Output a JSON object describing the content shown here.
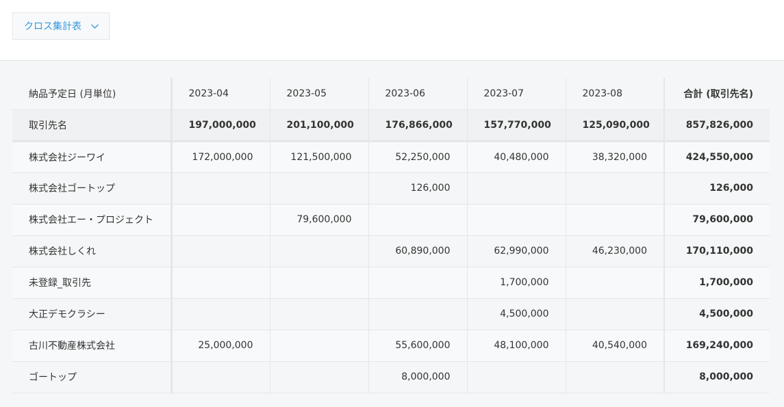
{
  "view_selector": {
    "label": "クロス集計表",
    "icon": "chevron-down-icon",
    "accent_color": "#3498db"
  },
  "table": {
    "header": {
      "row_dimension": "納品予定日 (月単位)",
      "columns": [
        "2023-04",
        "2023-05",
        "2023-06",
        "2023-07",
        "2023-08"
      ],
      "total": "合計 (取引先名)"
    },
    "summary_row": {
      "label": "取引先名",
      "values": [
        "197,000,000",
        "201,100,000",
        "176,866,000",
        "157,770,000",
        "125,090,000"
      ],
      "total": "857,826,000"
    },
    "rows": [
      {
        "label": "株式会社ジーワイ",
        "values": [
          "172,000,000",
          "121,500,000",
          "52,250,000",
          "40,480,000",
          "38,320,000"
        ],
        "total": "424,550,000"
      },
      {
        "label": "株式会社ゴートップ",
        "values": [
          "",
          "",
          "126,000",
          "",
          ""
        ],
        "total": "126,000"
      },
      {
        "label": "株式会社エー・プロジェクト",
        "values": [
          "",
          "79,600,000",
          "",
          "",
          ""
        ],
        "total": "79,600,000"
      },
      {
        "label": "株式会社しくれ",
        "values": [
          "",
          "",
          "60,890,000",
          "62,990,000",
          "46,230,000"
        ],
        "total": "170,110,000"
      },
      {
        "label": "未登録_取引先",
        "values": [
          "",
          "",
          "",
          "1,700,000",
          ""
        ],
        "total": "1,700,000"
      },
      {
        "label": "大正デモクラシー",
        "values": [
          "",
          "",
          "",
          "4,500,000",
          ""
        ],
        "total": "4,500,000"
      },
      {
        "label": "古川不動産株式会社",
        "values": [
          "25,000,000",
          "",
          "55,600,000",
          "48,100,000",
          "40,540,000"
        ],
        "total": "169,240,000"
      },
      {
        "label": "ゴートップ",
        "values": [
          "",
          "",
          "8,000,000",
          "",
          ""
        ],
        "total": "8,000,000"
      }
    ]
  }
}
